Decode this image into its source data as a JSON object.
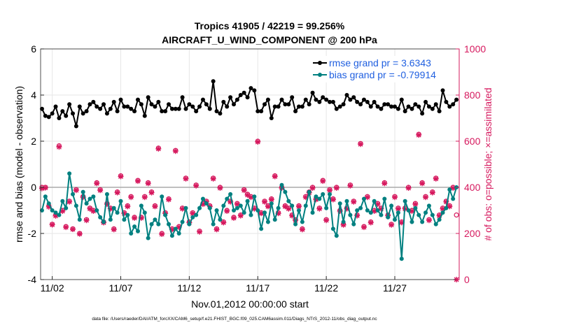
{
  "colors": {
    "rmse": "#000000",
    "bias": "#008080",
    "obs": "#d6195e",
    "zero_line": "#aaaaaa",
    "legend_text": "#1f5fe0",
    "grid": "#e6e6e6"
  },
  "chart_data": {
    "type": "line",
    "title": "Tropics 41905 / 42219 = 99.256%",
    "subtitle": "AIRCRAFT_U_WIND_COMPONENT @ 200 hPa",
    "xlabel": "Nov.01,2012 00:00:00 start",
    "ylabel_left": "rmse and bias (model - observation)",
    "ylabel_right": "# of obs: o=possible; ×=assimilated",
    "footnote": "data file: /Users/raeder/DAI/ATM_forcXX/CAM6_setup/f.e21.FHIST_BGC.f09_025.CAM6assim.011/Diags_NTrS_2012-11/obs_diag_output.nc",
    "x_unit": "days since Nov.01,2012",
    "xlim": [
      0.15,
      30.7
    ],
    "ylim_left": [
      -4,
      6
    ],
    "ylim_right": [
      0,
      1000
    ],
    "x_ticks": [
      1,
      6,
      11,
      16,
      21,
      26
    ],
    "x_tick_labels": [
      "11/02",
      "11/07",
      "11/12",
      "11/17",
      "11/22",
      "11/27"
    ],
    "y_ticks_left": [
      -4,
      -2,
      0,
      2,
      4,
      6
    ],
    "y_tick_labels_left": [
      "-4",
      "-2",
      "0",
      "2",
      "4",
      "6"
    ],
    "y_ticks_right": [
      0,
      200,
      400,
      600,
      800,
      1000
    ],
    "y_tick_labels_right": [
      "0",
      "200",
      "400",
      "600",
      "800",
      "1000"
    ],
    "legend": [
      {
        "label": "rmse grand pr = 3.6343"
      },
      {
        "label": "bias grand pr = -0.79914"
      }
    ],
    "legend_position": "top-right",
    "x": [
      0.25,
      0.5,
      0.75,
      1.0,
      1.25,
      1.5,
      1.75,
      2.0,
      2.25,
      2.5,
      2.75,
      3.0,
      3.25,
      3.5,
      3.75,
      4.0,
      4.25,
      4.5,
      4.75,
      5.0,
      5.25,
      5.5,
      5.75,
      6.0,
      6.25,
      6.5,
      6.75,
      7.0,
      7.25,
      7.5,
      7.75,
      8.0,
      8.25,
      8.5,
      8.75,
      9.0,
      9.25,
      9.5,
      9.75,
      10.0,
      10.25,
      10.5,
      10.75,
      11.0,
      11.25,
      11.5,
      11.75,
      12.0,
      12.25,
      12.5,
      12.75,
      13.0,
      13.25,
      13.5,
      13.75,
      14.0,
      14.25,
      14.5,
      14.75,
      15.0,
      15.25,
      15.5,
      15.75,
      16.0,
      16.25,
      16.5,
      16.75,
      17.0,
      17.25,
      17.5,
      17.75,
      18.0,
      18.25,
      18.5,
      18.75,
      19.0,
      19.25,
      19.5,
      19.75,
      20.0,
      20.25,
      20.5,
      20.75,
      21.0,
      21.25,
      21.5,
      21.75,
      22.0,
      22.25,
      22.5,
      22.75,
      23.0,
      23.25,
      23.5,
      23.75,
      24.0,
      24.25,
      24.5,
      24.75,
      25.0,
      25.25,
      25.5,
      25.75,
      26.0,
      26.25,
      26.5,
      26.75,
      27.0,
      27.25,
      27.5,
      27.75,
      28.0,
      28.25,
      28.5,
      28.75,
      29.0,
      29.25,
      29.5,
      29.75,
      30.0,
      30.25,
      30.5
    ],
    "series": [
      {
        "name": "rmse",
        "axis": "left",
        "values": [
          3.4,
          3.1,
          3.05,
          3.2,
          3.5,
          3.0,
          3.3,
          3.1,
          3.6,
          3.2,
          2.65,
          3.5,
          3.2,
          3.3,
          3.6,
          3.7,
          3.5,
          3.4,
          3.6,
          3.2,
          3.4,
          3.7,
          3.3,
          3.8,
          3.5,
          3.5,
          3.4,
          3.3,
          3.8,
          3.6,
          3.1,
          3.9,
          3.6,
          3.5,
          3.7,
          3.3,
          3.3,
          3.6,
          3.4,
          3.4,
          3.4,
          3.9,
          3.4,
          3.6,
          3.5,
          3.3,
          3.5,
          3.8,
          3.6,
          3.4,
          4.6,
          3.3,
          3.2,
          3.7,
          3.5,
          3.9,
          3.6,
          3.8,
          4.0,
          4.1,
          3.9,
          4.3,
          4.2,
          3.3,
          3.3,
          3.6,
          3.8,
          3.0,
          3.5,
          3.5,
          3.8,
          3.6,
          3.6,
          3.9,
          3.3,
          3.5,
          3.5,
          3.8,
          3.6,
          4.1,
          3.8,
          3.7,
          3.9,
          3.8,
          3.7,
          3.7,
          3.4,
          3.5,
          3.6,
          4.0,
          3.8,
          3.9,
          3.7,
          3.6,
          3.8,
          3.7,
          3.5,
          3.7,
          3.5,
          3.4,
          3.6,
          3.6,
          3.5,
          3.5,
          3.4,
          3.8,
          3.3,
          3.5,
          3.4,
          3.6,
          3.5,
          3.2,
          3.7,
          3.5,
          3.4,
          3.6,
          3.3,
          4.2,
          3.7,
          3.5,
          3.6,
          3.8
        ]
      },
      {
        "name": "bias",
        "axis": "left",
        "values": [
          -1.0,
          -0.4,
          -0.7,
          -1.0,
          -1.1,
          -1.2,
          -0.6,
          -0.9,
          0.6,
          -0.3,
          -0.8,
          -1.4,
          -0.2,
          -0.7,
          -0.5,
          -0.4,
          -1.0,
          -1.3,
          -1.5,
          -0.3,
          -1.4,
          -0.9,
          -1.1,
          -0.6,
          -1.4,
          -1.2,
          -2.0,
          -1.7,
          -1.9,
          -0.8,
          -1.1,
          -2.2,
          -1.6,
          -1.4,
          -1.6,
          -0.4,
          -1.2,
          -1.6,
          -2.1,
          -1.8,
          -2.0,
          -1.5,
          -0.9,
          -1.6,
          -1.3,
          -1.2,
          -0.9,
          -0.5,
          -0.7,
          -0.9,
          -1.6,
          -1.0,
          -1.4,
          -0.8,
          -0.5,
          -0.3,
          -1.0,
          -0.9,
          -0.8,
          -1.1,
          -0.6,
          -1.2,
          -0.4,
          -1.0,
          -1.8,
          -1.1,
          -1.5,
          -0.7,
          -1.4,
          -0.9,
          0.1,
          -0.2,
          -0.6,
          -0.8,
          -1.6,
          -1.0,
          -1.5,
          -0.8,
          -0.2,
          -1.1,
          -0.4,
          -0.5,
          -0.3,
          -0.9,
          -0.3,
          -1.8,
          -2.1,
          -0.7,
          -1.5,
          -0.6,
          -1.2,
          -1.6,
          -1.0,
          -0.9,
          -0.5,
          -1.0,
          -1.1,
          -0.6,
          -1.0,
          -1.2,
          -0.5,
          -1.3,
          -0.8,
          -1.4,
          -1.1,
          -3.1,
          -0.6,
          -1.0,
          -1.5,
          -0.9,
          -1.2,
          -1.5,
          -1.1,
          -0.8,
          -1.2,
          -1.6,
          -1.4,
          -1.1,
          -0.9,
          -0.1,
          -0.5,
          0.0
        ]
      },
      {
        "name": "possible_obs",
        "axis": "right",
        "marker": "o",
        "values": [
          400,
          400,
          320,
          240,
          280,
          580,
          300,
          230,
          340,
          220,
          390,
          200,
          360,
          260,
          310,
          300,
          420,
          390,
          250,
          330,
          310,
          220,
          380,
          450,
          290,
          320,
          360,
          270,
          430,
          270,
          360,
          420,
          380,
          320,
          570,
          200,
          290,
          350,
          220,
          560,
          230,
          310,
          440,
          250,
          290,
          410,
          210,
          330,
          340,
          320,
          440,
          220,
          400,
          250,
          300,
          340,
          270,
          330,
          280,
          390,
          370,
          360,
          310,
          600,
          290,
          340,
          320,
          350,
          450,
          290,
          400,
          320,
          310,
          280,
          260,
          320,
          220,
          360,
          380,
          400,
          350,
          310,
          430,
          260,
          390,
          350,
          400,
          300,
          240,
          310,
          410,
          340,
          280,
          590,
          230,
          360,
          250,
          300,
          330,
          310,
          420,
          280,
          240,
          360,
          310,
          250,
          310,
          400,
          300,
          330,
          630,
          420,
          360,
          260,
          380,
          440,
          280,
          310,
          340,
          320,
          400,
          280
        ]
      },
      {
        "name": "assimilated_obs",
        "axis": "right",
        "marker": "x",
        "values": [
          395,
          398,
          315,
          238,
          276,
          575,
          297,
          227,
          337,
          218,
          387,
          198,
          357,
          257,
          307,
          297,
          417,
          387,
          247,
          327,
          307,
          217,
          377,
          447,
          287,
          317,
          357,
          267,
          427,
          267,
          357,
          417,
          377,
          317,
          567,
          197,
          287,
          347,
          217,
          557,
          227,
          307,
          437,
          247,
          287,
          407,
          207,
          327,
          337,
          317,
          437,
          217,
          397,
          247,
          297,
          337,
          267,
          327,
          277,
          387,
          367,
          357,
          307,
          597,
          287,
          337,
          317,
          347,
          447,
          287,
          397,
          317,
          307,
          277,
          257,
          317,
          217,
          357,
          377,
          397,
          347,
          307,
          427,
          257,
          387,
          347,
          397,
          297,
          237,
          307,
          407,
          337,
          277,
          587,
          227,
          357,
          247,
          297,
          327,
          307,
          417,
          277,
          237,
          357,
          307,
          247,
          307,
          397,
          297,
          327,
          627,
          417,
          357,
          257,
          377,
          437,
          277,
          307,
          337,
          317,
          397,
          0
        ]
      }
    ]
  }
}
